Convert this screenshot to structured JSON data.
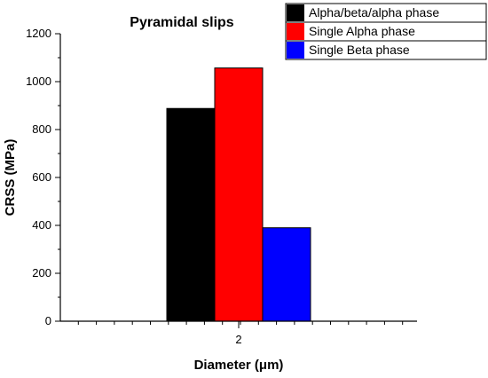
{
  "chart_data": {
    "type": "bar",
    "title": "Pyramidal slips",
    "xlabel": "Diameter (μm)",
    "ylabel": "CRSS (MPa)",
    "categories": [
      "2"
    ],
    "ylim": [
      0,
      1200
    ],
    "yticks": [
      0,
      200,
      400,
      600,
      800,
      1000,
      1200
    ],
    "grid": false,
    "legend_position": "top-right",
    "series": [
      {
        "name": "Alpha/beta/alpha phase",
        "values": [
          888
        ],
        "color": "#000000"
      },
      {
        "name": "Single Alpha phase",
        "values": [
          1057
        ],
        "color": "#ff0000"
      },
      {
        "name": "Single Beta phase",
        "values": [
          390
        ],
        "color": "#0000ff"
      }
    ]
  }
}
